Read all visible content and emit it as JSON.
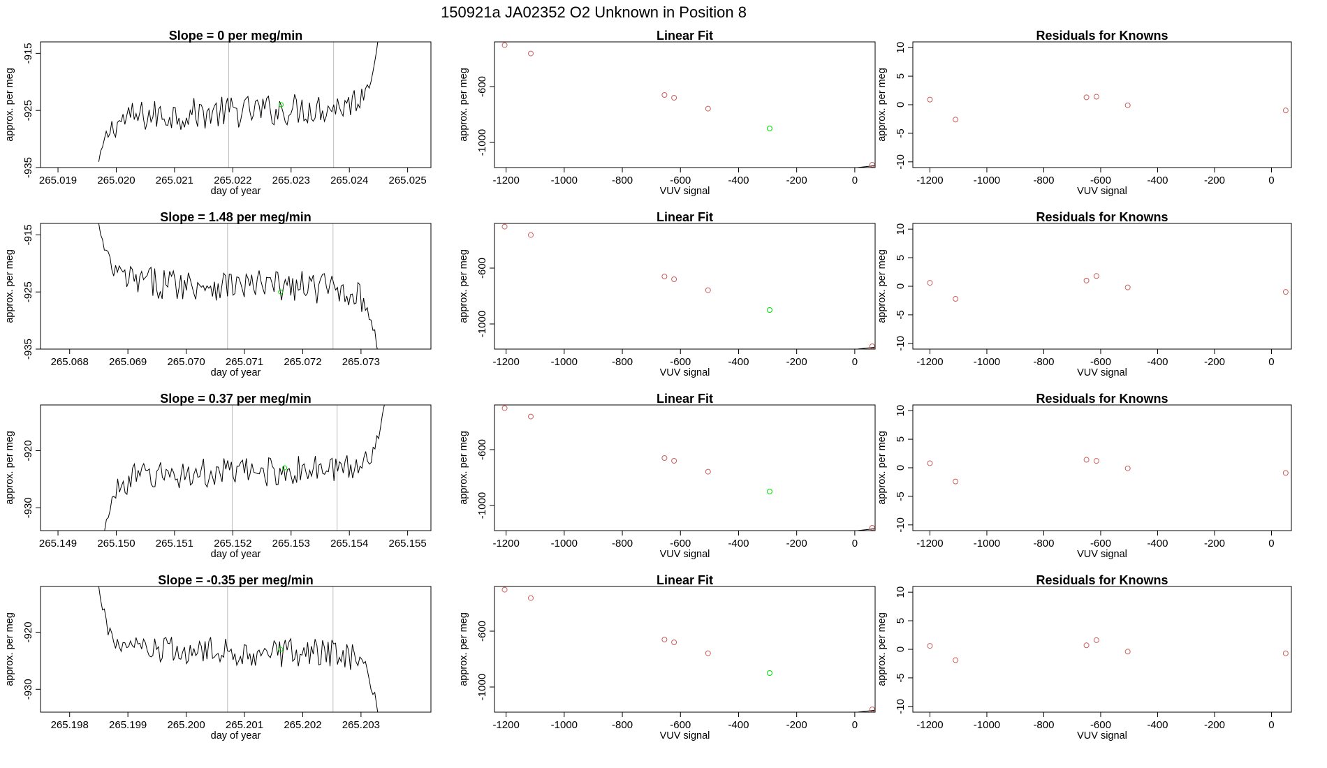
{
  "suptitle": "150921a      JA02352    O2 Unknown in Position  8",
  "colors": {
    "line": "#000000",
    "known_point": "#cd5c5c",
    "unknown_point": "#00e000",
    "marker_line": "#bebebe"
  },
  "chart_data": [
    {
      "type": "line",
      "row": 1,
      "panel": "time-series",
      "title": "Slope =  0  per meg/min",
      "xlabel": "day of year",
      "ylabel": "approx. per meg",
      "xlim": [
        265.0187,
        265.0254
      ],
      "ylim": [
        -935,
        -913
      ],
      "x_ticks": [
        "265.019",
        "265.020",
        "265.021",
        "265.022",
        "265.023",
        "265.024",
        "265.025"
      ],
      "y_ticks": [
        "-915",
        "-925",
        "-935"
      ],
      "trace": {
        "x_start": 265.0197,
        "x_end": 265.0245,
        "start_y": -934,
        "end_y": -912,
        "mean": -925.2,
        "rise": 2.2,
        "noise": 2.8
      },
      "vlines": [
        265.02193,
        265.02373
      ],
      "unknown_point": {
        "x": 265.02283,
        "y": -924
      }
    },
    {
      "type": "scatter",
      "row": 1,
      "panel": "linear-fit",
      "title": "Linear Fit",
      "xlabel": "VUV signal",
      "ylabel": "approx. per meg",
      "xlim": [
        -1240,
        70
      ],
      "ylim": [
        -1180,
        -280
      ],
      "x_ticks": [
        "-1200",
        "-1000",
        "-800",
        "-600",
        "-400",
        "-200",
        "0"
      ],
      "y_ticks": [
        "-600",
        "-1000"
      ],
      "fit_line": {
        "slope": 0.9,
        "intercept": -1128
      },
      "knowns": [
        {
          "x": -1205,
          "y": -303
        },
        {
          "x": -1115,
          "y": -363
        },
        {
          "x": -655,
          "y": -660
        },
        {
          "x": -622,
          "y": -680
        },
        {
          "x": -505,
          "y": -758
        },
        {
          "x": 60,
          "y": -1160
        }
      ],
      "unknown": {
        "x": -293,
        "y": -900
      }
    },
    {
      "type": "scatter",
      "row": 1,
      "panel": "residuals",
      "title": "Residuals for Knowns",
      "xlabel": "VUV signal",
      "ylabel": "approx. per meg",
      "xlim": [
        -1260,
        70
      ],
      "ylim": [
        -11,
        11
      ],
      "x_ticks": [
        "-1200",
        "-1000",
        "-800",
        "-600",
        "-400",
        "-200",
        "0"
      ],
      "y_ticks": [
        "10",
        "5",
        "0",
        "-5",
        "-10"
      ],
      "points": [
        {
          "x": -1200,
          "y": 0.9
        },
        {
          "x": -1110,
          "y": -2.6
        },
        {
          "x": -650,
          "y": 1.3
        },
        {
          "x": -615,
          "y": 1.4
        },
        {
          "x": -505,
          "y": -0.1
        },
        {
          "x": 50,
          "y": -1.0
        }
      ]
    },
    {
      "type": "line",
      "row": 2,
      "panel": "time-series",
      "title": "Slope =  1.48  per meg/min",
      "xlabel": "day of year",
      "ylabel": "approx. per meg",
      "xlim": [
        265.0675,
        265.0742
      ],
      "ylim": [
        -935,
        -913
      ],
      "x_ticks": [
        "265.068",
        "265.069",
        "265.070",
        "265.071",
        "265.072",
        "265.073"
      ],
      "y_ticks": [
        "-915",
        "-925",
        "-935"
      ],
      "trace": {
        "x_start": 265.0685,
        "x_end": 265.0733,
        "start_y": -913,
        "end_y": -936,
        "mean": -923.8,
        "rise": -1.4,
        "noise": 2.8
      },
      "vlines": [
        265.07071,
        265.07252
      ],
      "unknown_point": {
        "x": 265.07162,
        "y": -925
      }
    },
    {
      "type": "scatter",
      "row": 2,
      "panel": "linear-fit",
      "title": "Linear Fit",
      "xlabel": "VUV signal",
      "ylabel": "approx. per meg",
      "xlim": [
        -1240,
        70
      ],
      "ylim": [
        -1180,
        -280
      ],
      "x_ticks": [
        "-1200",
        "-1000",
        "-800",
        "-600",
        "-400",
        "-200",
        "0"
      ],
      "y_ticks": [
        "-600",
        "-1000"
      ],
      "fit_line": {
        "slope": 0.9,
        "intercept": -1128
      },
      "knowns": [
        {
          "x": -1205,
          "y": -303
        },
        {
          "x": -1115,
          "y": -363
        },
        {
          "x": -655,
          "y": -660
        },
        {
          "x": -622,
          "y": -680
        },
        {
          "x": -505,
          "y": -758
        },
        {
          "x": 60,
          "y": -1160
        }
      ],
      "unknown": {
        "x": -293,
        "y": -900
      }
    },
    {
      "type": "scatter",
      "row": 2,
      "panel": "residuals",
      "title": "Residuals for Knowns",
      "xlabel": "VUV signal",
      "ylabel": "approx. per meg",
      "xlim": [
        -1260,
        70
      ],
      "ylim": [
        -11,
        11
      ],
      "x_ticks": [
        "-1200",
        "-1000",
        "-800",
        "-600",
        "-400",
        "-200",
        "0"
      ],
      "y_ticks": [
        "10",
        "5",
        "0",
        "-5",
        "-10"
      ],
      "points": [
        {
          "x": -1200,
          "y": 0.6
        },
        {
          "x": -1110,
          "y": -2.2
        },
        {
          "x": -650,
          "y": 1.0
        },
        {
          "x": -615,
          "y": 1.8
        },
        {
          "x": -505,
          "y": -0.2
        },
        {
          "x": 50,
          "y": -1.0
        }
      ]
    },
    {
      "type": "line",
      "row": 3,
      "panel": "time-series",
      "title": "Slope =  0.37  per meg/min",
      "xlabel": "day of year",
      "ylabel": "approx. per meg",
      "xlim": [
        265.1487,
        265.1554
      ],
      "ylim": [
        -934,
        -912
      ],
      "x_ticks": [
        "265.149",
        "265.150",
        "265.151",
        "265.152",
        "265.153",
        "265.154",
        "265.155"
      ],
      "y_ticks": [
        "-920",
        "-930"
      ],
      "trace": {
        "x_start": 265.1498,
        "x_end": 265.1546,
        "start_y": -934,
        "end_y": -912,
        "mean": -923.8,
        "rise": 1.6,
        "noise": 2.6
      },
      "vlines": [
        265.15199,
        265.15379
      ],
      "unknown_point": {
        "x": 265.15289,
        "y": -923
      }
    },
    {
      "type": "scatter",
      "row": 3,
      "panel": "linear-fit",
      "title": "Linear Fit",
      "xlabel": "VUV signal",
      "ylabel": "approx. per meg",
      "xlim": [
        -1240,
        70
      ],
      "ylim": [
        -1180,
        -280
      ],
      "x_ticks": [
        "-1200",
        "-1000",
        "-800",
        "-600",
        "-400",
        "-200",
        "0"
      ],
      "y_ticks": [
        "-600",
        "-1000"
      ],
      "fit_line": {
        "slope": 0.9,
        "intercept": -1128
      },
      "knowns": [
        {
          "x": -1205,
          "y": -303
        },
        {
          "x": -1115,
          "y": -363
        },
        {
          "x": -655,
          "y": -660
        },
        {
          "x": -622,
          "y": -680
        },
        {
          "x": -505,
          "y": -758
        },
        {
          "x": 60,
          "y": -1160
        }
      ],
      "unknown": {
        "x": -293,
        "y": -900
      }
    },
    {
      "type": "scatter",
      "row": 3,
      "panel": "residuals",
      "title": "Residuals for Knowns",
      "xlabel": "VUV signal",
      "ylabel": "approx. per meg",
      "xlim": [
        -1260,
        70
      ],
      "ylim": [
        -11,
        11
      ],
      "x_ticks": [
        "-1200",
        "-1000",
        "-800",
        "-600",
        "-400",
        "-200",
        "0"
      ],
      "y_ticks": [
        "10",
        "5",
        "0",
        "-5",
        "-10"
      ],
      "points": [
        {
          "x": -1200,
          "y": 0.8
        },
        {
          "x": -1110,
          "y": -2.4
        },
        {
          "x": -650,
          "y": 1.4
        },
        {
          "x": -615,
          "y": 1.2
        },
        {
          "x": -505,
          "y": -0.1
        },
        {
          "x": 50,
          "y": -0.9
        }
      ]
    },
    {
      "type": "line",
      "row": 4,
      "panel": "time-series",
      "title": "Slope =  -0.35  per meg/min",
      "xlabel": "day of year",
      "ylabel": "approx. per meg",
      "xlim": [
        265.1975,
        265.2042
      ],
      "ylim": [
        -934,
        -912
      ],
      "x_ticks": [
        "265.198",
        "265.199",
        "265.200",
        "265.201",
        "265.202",
        "265.203"
      ],
      "y_ticks": [
        "-920",
        "-930"
      ],
      "trace": {
        "x_start": 265.1985,
        "x_end": 265.2033,
        "start_y": -912,
        "end_y": -935,
        "mean": -923.5,
        "rise": -0.4,
        "noise": 2.6
      },
      "vlines": [
        265.20071,
        265.20252
      ],
      "unknown_point": {
        "x": 265.20162,
        "y": -923
      }
    },
    {
      "type": "scatter",
      "row": 4,
      "panel": "linear-fit",
      "title": "Linear Fit",
      "xlabel": "VUV signal",
      "ylabel": "approx. per meg",
      "xlim": [
        -1240,
        70
      ],
      "ylim": [
        -1180,
        -280
      ],
      "x_ticks": [
        "-1200",
        "-1000",
        "-800",
        "-600",
        "-400",
        "-200",
        "0"
      ],
      "y_ticks": [
        "-600",
        "-1000"
      ],
      "fit_line": {
        "slope": 0.9,
        "intercept": -1128
      },
      "knowns": [
        {
          "x": -1205,
          "y": -303
        },
        {
          "x": -1115,
          "y": -363
        },
        {
          "x": -655,
          "y": -660
        },
        {
          "x": -622,
          "y": -680
        },
        {
          "x": -505,
          "y": -758
        },
        {
          "x": 60,
          "y": -1160
        }
      ],
      "unknown": {
        "x": -293,
        "y": -900
      }
    },
    {
      "type": "scatter",
      "row": 4,
      "panel": "residuals",
      "title": "Residuals for Knowns",
      "xlabel": "VUV signal",
      "ylabel": "approx. per meg",
      "xlim": [
        -1260,
        70
      ],
      "ylim": [
        -11,
        11
      ],
      "x_ticks": [
        "-1200",
        "-1000",
        "-800",
        "-600",
        "-400",
        "-200",
        "0"
      ],
      "y_ticks": [
        "10",
        "5",
        "0",
        "-5",
        "-10"
      ],
      "points": [
        {
          "x": -1200,
          "y": 0.6
        },
        {
          "x": -1110,
          "y": -1.9
        },
        {
          "x": -650,
          "y": 0.7
        },
        {
          "x": -615,
          "y": 1.6
        },
        {
          "x": -505,
          "y": -0.4
        },
        {
          "x": 50,
          "y": -0.7
        }
      ]
    }
  ]
}
